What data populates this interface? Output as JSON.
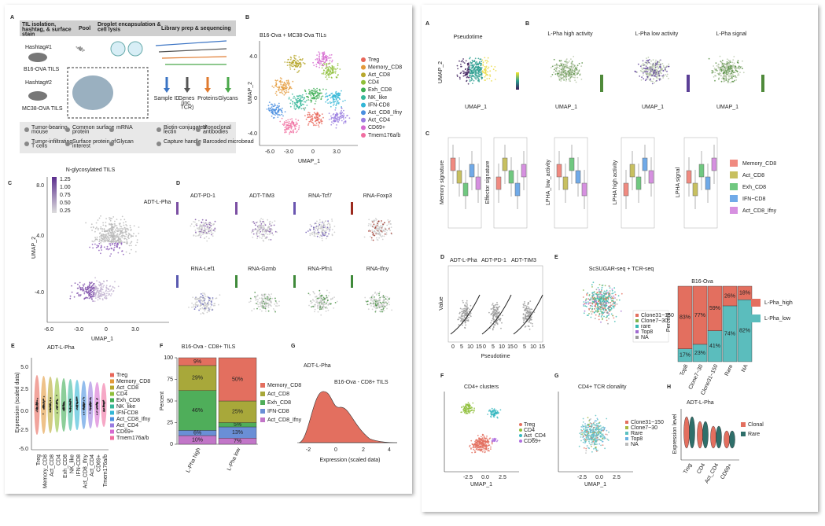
{
  "left": {
    "panel_a": {
      "letter": "A",
      "steps": [
        "TIL isolation, hashtag, & surface stain",
        "Pool",
        "Droplet encapsulation & cell lysis",
        "Library prep & sequencing"
      ],
      "samples": [
        "Hashtag#1",
        "B16-OVA TILS",
        "Hashtag#2",
        "MC38-OVA TILS"
      ],
      "readouts": [
        {
          "name": "Sample ID",
          "color": "#3b74c4"
        },
        {
          "name": "Genes (inc. TCR)",
          "color": "#555555"
        },
        {
          "name": "Proteins",
          "color": "#e07a2e"
        },
        {
          "name": "Glycans",
          "color": "#4aa84a"
        }
      ],
      "legend": [
        "Tumor-bearing mouse",
        "Common surface protein",
        "mRNA",
        "Biotin-conjugated lectin",
        "Monoclonal antibodies",
        "Tumor-infiltrating T cells",
        "Surface protein of interest",
        "Glycan",
        "Capture handle",
        "Barcoded microbead"
      ]
    },
    "panel_b": {
      "letter": "B",
      "title": "B16-Ova + MC38-Ova TILs",
      "x_label": "UMAP_1",
      "y_label": "UMAP_2",
      "xticks": [
        "-6.0",
        "-3.0",
        "0",
        "3.0"
      ],
      "yticks": [
        "4.0",
        "0",
        "-4.0"
      ],
      "clusters": [
        {
          "name": "Treg",
          "color": "#e8675a"
        },
        {
          "name": "Memory_CD8",
          "color": "#e39a3a"
        },
        {
          "name": "Act_CD8",
          "color": "#b8a82e"
        },
        {
          "name": "CD4",
          "color": "#8fbf3a"
        },
        {
          "name": "Exh_CD8",
          "color": "#3fae55"
        },
        {
          "name": "NK_like",
          "color": "#37b89a"
        },
        {
          "name": "IFN-CD8",
          "color": "#33b6d6"
        },
        {
          "name": "Act_CD8_Ifny",
          "color": "#4a8fe0"
        },
        {
          "name": "Act_CD4",
          "color": "#9a7de0"
        },
        {
          "name": "CD69+",
          "color": "#d66ad0"
        },
        {
          "name": "Tmem176a/b",
          "color": "#f06ea0"
        }
      ]
    },
    "panel_c": {
      "letter": "C",
      "title": "N-glycosylated TILS",
      "feature": "ADT-L-Pha",
      "scale": [
        "1.25",
        "1.00",
        "0.75",
        "0.50",
        "0.25"
      ],
      "x_label": "UMAP_1",
      "y_label": "UMAP_2",
      "xticks": [
        "-6.0",
        "-3.0",
        "0",
        "3.0"
      ],
      "yticks": [
        "8.0",
        "4.0",
        "-4.0"
      ]
    },
    "panel_d": {
      "letter": "D",
      "features": [
        {
          "name": "ADT-PD-1",
          "color": "#7b4fa3"
        },
        {
          "name": "ADT-TIM3",
          "color": "#7b4fa3"
        },
        {
          "name": "RNA-Tcf7",
          "color": "#6a55b0"
        },
        {
          "name": "RNA-Foxp3",
          "color": "#9c2a1e"
        },
        {
          "name": "RNA-Lef1",
          "color": "#5a5ab0"
        },
        {
          "name": "RNA-Gzmb",
          "color": "#3f8a3a"
        },
        {
          "name": "RNA-Pfn1",
          "color": "#3f8a3a"
        },
        {
          "name": "RNA-Ifny",
          "color": "#3f8a3a"
        }
      ]
    },
    "panel_e": {
      "letter": "E",
      "title": "ADT-L-Pha",
      "y_label": "Expression (scaled data)",
      "yticks": [
        "5.0",
        "2.5",
        "0.0",
        "-2.5",
        "-5.0"
      ]
    },
    "panel_f": {
      "letter": "F",
      "title": "B16-Ova - CD8+ TILS",
      "y_label": "Percent",
      "ylim": [
        0,
        100
      ],
      "yticks": [
        0,
        25,
        50,
        75,
        100
      ],
      "categories": [
        "L-Pha high",
        "L-Pha low"
      ],
      "series": [
        {
          "name": "Memory_CD8",
          "color": "#e36f5f",
          "values": [
            9,
            50
          ],
          "value_labels": [
            "9%",
            "50%"
          ]
        },
        {
          "name": "Act_CD8",
          "color": "#a8a83a",
          "values": [
            29,
            25
          ],
          "value_labels": [
            "29%",
            "25%"
          ]
        },
        {
          "name": "Exh_CD8",
          "color": "#4fae5a",
          "values": [
            46,
            5
          ],
          "value_labels": [
            "46%",
            "5%"
          ]
        },
        {
          "name": "IFN-CD8",
          "color": "#6a8fd6",
          "values": [
            6,
            13
          ],
          "value_labels": [
            "6%",
            "13%"
          ]
        },
        {
          "name": "Act_CD8_Ifny",
          "color": "#c276c8",
          "values": [
            10,
            7
          ],
          "value_labels": [
            "10%",
            "7%"
          ]
        }
      ]
    },
    "panel_g": {
      "letter": "G",
      "title": "ADT-L-Pha",
      "subtitle": "B16-Ova - CD8+ TILS",
      "x_label": "Expression (scaled data)",
      "xticks": [
        "-2",
        "0",
        "2",
        "4"
      ],
      "color": "#e36f5f"
    }
  },
  "right": {
    "axis": {
      "x": "UMAP_1",
      "y": "UMAP_2"
    },
    "panel_a": {
      "letter": "A",
      "title": "Pseudotime"
    },
    "panel_b": {
      "letter": "B",
      "titles": [
        {
          "name": "L-Pha high activity",
          "color": "#4f8a3a"
        },
        {
          "name": "L-Pha low activity",
          "color": "#5b3f96"
        },
        {
          "name": "L-Pha signal",
          "color": "#4f8a3a"
        }
      ]
    },
    "panel_c": {
      "letter": "C",
      "signatures": [
        "Memory signature",
        "Effector signature",
        "LPHA_low_activity",
        "LPHA high activity",
        "LPHA signal"
      ],
      "groups": [
        {
          "name": "Memory_CD8",
          "color": "#f08a80"
        },
        {
          "name": "Act_CD8",
          "color": "#c8c060"
        },
        {
          "name": "Exh_CD8",
          "color": "#70c880"
        },
        {
          "name": "IFN−CD8",
          "color": "#70aae8"
        },
        {
          "name": "Act_CD8_Ifny",
          "color": "#d690e0"
        }
      ]
    },
    "panel_d": {
      "letter": "D",
      "features": [
        "ADT-L-Pha",
        "ADT-PD-1",
        "ADT-TIM3"
      ],
      "y_label": "Value",
      "x_label": "Pseudotime",
      "xticks": [
        "0",
        "5",
        "10",
        "15"
      ]
    },
    "panel_e": {
      "letter": "E",
      "title": "ScSUGAR-seq + TCR-seq",
      "clones": [
        {
          "name": "Clone31~150",
          "color": "#e36f5f"
        },
        {
          "name": "Clone7~30",
          "color": "#7fb24a"
        },
        {
          "name": "rare",
          "color": "#37b8b0"
        },
        {
          "name": "Top8",
          "color": "#a06ad0"
        },
        {
          "name": "NA",
          "color": "#999999"
        }
      ],
      "bar_title": "B16-Ova",
      "y_label": "Percent",
      "ylim": [
        0,
        100
      ],
      "categories": [
        "Top8",
        "Clone7~30",
        "Clone31~150",
        "Rare",
        "NA"
      ],
      "series": [
        {
          "name": "L-Pha_high",
          "color": "#e36f5f",
          "values": [
            83,
            77,
            59,
            26,
            18
          ],
          "value_labels": [
            "83%",
            "77%",
            "59%",
            "26%",
            "18%"
          ]
        },
        {
          "name": "L-Pha_low",
          "color": "#5bbdbd",
          "values": [
            17,
            23,
            41,
            74,
            82
          ],
          "value_labels": [
            "17%",
            "23%",
            "41%",
            "74%",
            "82%"
          ]
        }
      ]
    },
    "panel_f": {
      "letter": "F",
      "title": "CD4+ clusters",
      "clusters": [
        {
          "name": "Treg",
          "color": "#e36f5f"
        },
        {
          "name": "CD4",
          "color": "#8fbf3a"
        },
        {
          "name": "Act_CD4",
          "color": "#37b8c0"
        },
        {
          "name": "CD69+",
          "color": "#b070e0"
        }
      ],
      "xticks": [
        "-2.5",
        "0.0",
        "2.5"
      ]
    },
    "panel_g": {
      "letter": "G",
      "title": "CD4+ TCR clonality",
      "clones": [
        {
          "name": "Clone31~150",
          "color": "#e36f5f"
        },
        {
          "name": "Clone7~30",
          "color": "#a8b840"
        },
        {
          "name": "Rare",
          "color": "#5bc0c0"
        },
        {
          "name": "Top8",
          "color": "#6ab0e0"
        },
        {
          "name": "NA",
          "color": "#bbbbbb"
        }
      ]
    },
    "panel_h": {
      "letter": "H",
      "title": "ADT-L-Pha",
      "y_label": "Expression level",
      "groups": [
        {
          "name": "Clonal",
          "color": "#e36f5f"
        },
        {
          "name": "Rare",
          "color": "#2f6f6a"
        }
      ]
    }
  }
}
